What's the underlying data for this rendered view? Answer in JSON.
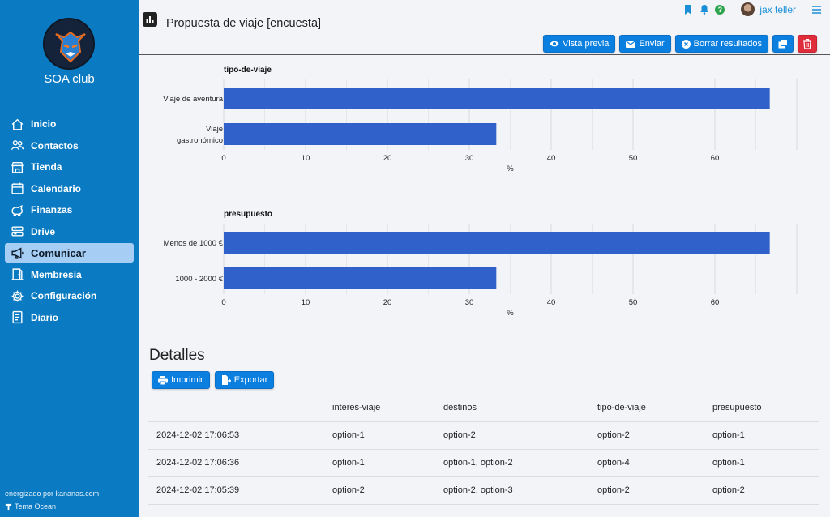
{
  "sidebar": {
    "club_name": "SOA club",
    "items": [
      {
        "label": "Inicio",
        "icon": "home-icon",
        "active": false
      },
      {
        "label": "Contactos",
        "icon": "users-icon",
        "active": false
      },
      {
        "label": "Tienda",
        "icon": "store-icon",
        "active": false
      },
      {
        "label": "Calendario",
        "icon": "calendar-icon",
        "active": false
      },
      {
        "label": "Finanzas",
        "icon": "finance-icon",
        "active": false
      },
      {
        "label": "Drive",
        "icon": "drive-icon",
        "active": false
      },
      {
        "label": "Comunicar",
        "icon": "megaphone-icon",
        "active": true
      },
      {
        "label": "Membresía",
        "icon": "door-icon",
        "active": false
      },
      {
        "label": "Configuración",
        "icon": "gear-icon",
        "active": false
      },
      {
        "label": "Diario",
        "icon": "journal-icon",
        "active": false
      }
    ],
    "powered_by": "energizado por kananas.com",
    "theme": "Tema Ocean"
  },
  "header": {
    "title": "Propuesta de viaje [encuesta]",
    "user_name": "jax teller",
    "help_label": "?",
    "actions": {
      "preview": "Vista previa",
      "send": "Enviar",
      "clear": "Borrar resultados"
    }
  },
  "charts": {
    "xlabel": "%",
    "ticks": [
      "0",
      "10",
      "20",
      "30",
      "40",
      "50",
      "60"
    ]
  },
  "chart_data": [
    {
      "type": "bar",
      "orientation": "horizontal",
      "title": "tipo-de-viaje",
      "categories": [
        "Viaje de aventura",
        "Viaje gastronómico"
      ],
      "category_lines": [
        [
          "Viaje de aventura"
        ],
        [
          "Viaje",
          "gastronómico"
        ]
      ],
      "values": [
        66.7,
        33.3
      ],
      "xlabel": "%",
      "xlim": [
        0,
        70
      ],
      "xticks": [
        0,
        10,
        20,
        30,
        40,
        50,
        60
      ],
      "grid": true,
      "color": "#3060c9"
    },
    {
      "type": "bar",
      "orientation": "horizontal",
      "title": "presupuesto",
      "categories": [
        "Menos de 1000 €",
        "1000 - 2000 €"
      ],
      "category_lines": [
        [
          "Menos de 1000 €"
        ],
        [
          "1000 - 2000 €"
        ]
      ],
      "values": [
        66.7,
        33.3
      ],
      "xlabel": "%",
      "xlim": [
        0,
        70
      ],
      "xticks": [
        0,
        10,
        20,
        30,
        40,
        50,
        60
      ],
      "grid": true,
      "color": "#3060c9"
    }
  ],
  "details": {
    "title": "Detalles",
    "print_label": "Imprimir",
    "export_label": "Exportar",
    "columns": [
      "",
      "interes-viaje",
      "destinos",
      "tipo-de-viaje",
      "presupuesto"
    ],
    "rows": [
      [
        "2024-12-02 17:06:53",
        "option-1",
        "option-2",
        "option-2",
        "option-1"
      ],
      [
        "2024-12-02 17:06:36",
        "option-1",
        "option-1, option-2",
        "option-4",
        "option-1"
      ],
      [
        "2024-12-02 17:05:39",
        "option-2",
        "option-2, option-3",
        "option-2",
        "option-2"
      ]
    ]
  }
}
